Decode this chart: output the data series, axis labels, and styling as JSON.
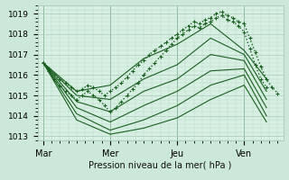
{
  "bg_color": "#cce8d8",
  "plot_bg": "#d8f0e4",
  "grid_color": "#a8ccb8",
  "line_color": "#1a6020",
  "ylabel": "Pression niveau de la mer( hPa )",
  "ylim": [
    1012.8,
    1019.4
  ],
  "yticks": [
    1013,
    1014,
    1015,
    1016,
    1017,
    1018,
    1019
  ],
  "xtick_labels": [
    "Mar",
    "Mer",
    "Jeu",
    "Ven"
  ],
  "xtick_positions": [
    0,
    24,
    48,
    72
  ],
  "xlim": [
    -2,
    86
  ],
  "series": [
    {
      "x": [
        0,
        2,
        4,
        6,
        8,
        10,
        12,
        14,
        16,
        18,
        20,
        22,
        24,
        26,
        28,
        30,
        32,
        34,
        36,
        38,
        40,
        42,
        44,
        46,
        48,
        50,
        52,
        54,
        56,
        58,
        60,
        62,
        64,
        66,
        68,
        70,
        72,
        74,
        76,
        78,
        80,
        82,
        84
      ],
      "y": [
        1016.6,
        1016.3,
        1016.0,
        1015.8,
        1015.6,
        1015.4,
        1015.2,
        1015.3,
        1015.5,
        1015.4,
        1015.2,
        1015.0,
        1015.2,
        1015.4,
        1015.6,
        1015.9,
        1016.2,
        1016.5,
        1016.7,
        1017.0,
        1017.2,
        1017.4,
        1017.6,
        1017.8,
        1018.0,
        1018.2,
        1018.4,
        1018.6,
        1018.5,
        1018.7,
        1018.8,
        1019.0,
        1019.1,
        1018.9,
        1018.8,
        1018.6,
        1018.5,
        1017.8,
        1017.1,
        1016.4,
        1015.8,
        1015.4,
        1015.1
      ],
      "style": "dotted_marker",
      "lw": 1.0
    },
    {
      "x": [
        0,
        2,
        4,
        6,
        8,
        10,
        12,
        14,
        16,
        18,
        20,
        22,
        24,
        26,
        28,
        30,
        32,
        34,
        36,
        38,
        40,
        42,
        44,
        46,
        48,
        50,
        52,
        54,
        56,
        58,
        60,
        62,
        64,
        66,
        68,
        70,
        72,
        74,
        76,
        78,
        80
      ],
      "y": [
        1016.6,
        1016.2,
        1015.8,
        1015.5,
        1015.2,
        1015.0,
        1014.8,
        1015.0,
        1015.2,
        1015.0,
        1014.8,
        1014.5,
        1014.2,
        1014.4,
        1014.7,
        1015.0,
        1015.3,
        1015.6,
        1016.0,
        1016.3,
        1016.6,
        1016.9,
        1017.2,
        1017.5,
        1017.8,
        1018.0,
        1018.2,
        1018.4,
        1018.3,
        1018.5,
        1018.6,
        1018.8,
        1018.9,
        1018.7,
        1018.6,
        1018.4,
        1018.1,
        1017.3,
        1016.5,
        1015.8,
        1015.4
      ],
      "style": "dotted_marker",
      "lw": 1.0
    },
    {
      "x": [
        0,
        12,
        24,
        36,
        48,
        60,
        72,
        80
      ],
      "y": [
        1016.6,
        1015.2,
        1015.5,
        1016.8,
        1017.5,
        1018.5,
        1017.2,
        1015.8
      ],
      "style": "line",
      "lw": 0.8
    },
    {
      "x": [
        0,
        12,
        24,
        36,
        48,
        60,
        72,
        80
      ],
      "y": [
        1016.6,
        1015.0,
        1014.8,
        1015.8,
        1016.5,
        1017.8,
        1017.0,
        1015.2
      ],
      "style": "line",
      "lw": 0.8
    },
    {
      "x": [
        0,
        12,
        24,
        36,
        48,
        60,
        72,
        80
      ],
      "y": [
        1016.6,
        1014.7,
        1014.2,
        1015.2,
        1015.8,
        1017.0,
        1016.7,
        1014.8
      ],
      "style": "line",
      "lw": 0.8
    },
    {
      "x": [
        0,
        12,
        24,
        36,
        48,
        60,
        72,
        80
      ],
      "y": [
        1016.6,
        1014.4,
        1013.7,
        1014.5,
        1015.2,
        1016.2,
        1016.3,
        1014.4
      ],
      "style": "line",
      "lw": 0.8
    },
    {
      "x": [
        0,
        12,
        24,
        36,
        48,
        60,
        72,
        80
      ],
      "y": [
        1016.6,
        1014.1,
        1013.3,
        1013.8,
        1014.5,
        1015.5,
        1016.0,
        1014.0
      ],
      "style": "line",
      "lw": 0.8
    },
    {
      "x": [
        0,
        12,
        24,
        36,
        48,
        60,
        72,
        80
      ],
      "y": [
        1016.6,
        1013.8,
        1013.1,
        1013.4,
        1013.9,
        1014.8,
        1015.5,
        1013.7
      ],
      "style": "line",
      "lw": 0.8
    }
  ],
  "vlines": [
    0,
    24,
    48,
    72
  ]
}
